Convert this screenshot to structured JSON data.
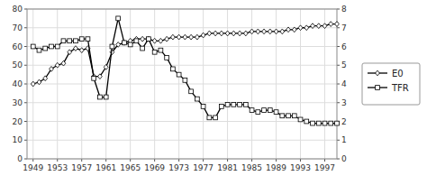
{
  "chart_data": {
    "type": "line",
    "x": [
      1949,
      1950,
      1951,
      1952,
      1953,
      1954,
      1955,
      1956,
      1957,
      1958,
      1959,
      1960,
      1961,
      1962,
      1963,
      1964,
      1965,
      1966,
      1967,
      1968,
      1969,
      1970,
      1971,
      1972,
      1973,
      1974,
      1975,
      1976,
      1977,
      1978,
      1979,
      1980,
      1981,
      1982,
      1983,
      1984,
      1985,
      1986,
      1987,
      1988,
      1989,
      1990,
      1991,
      1992,
      1993,
      1994,
      1995,
      1996,
      1997,
      1998,
      1999
    ],
    "series": [
      {
        "name": "E0",
        "color": "#000000",
        "marker": "diamond",
        "axis": "y",
        "values": [
          40,
          41,
          43,
          48,
          50,
          51,
          57,
          59,
          58,
          59,
          44,
          44,
          49,
          57,
          61,
          62,
          63,
          64,
          64,
          64,
          63,
          63,
          64,
          65,
          65,
          65,
          65,
          65,
          66,
          67,
          67,
          67,
          67,
          67,
          67,
          67,
          68,
          68,
          68,
          68,
          68,
          68,
          69,
          69,
          70,
          70,
          71,
          71,
          71,
          72,
          72
        ]
      },
      {
        "name": "TFR",
        "color": "#000000",
        "marker": "square",
        "axis": "y2",
        "values": [
          6.0,
          5.8,
          5.9,
          6.0,
          6.0,
          6.3,
          6.3,
          6.3,
          6.4,
          6.4,
          4.3,
          3.3,
          3.3,
          6.0,
          7.5,
          6.2,
          6.1,
          6.3,
          5.9,
          6.4,
          5.7,
          5.8,
          5.4,
          4.8,
          4.5,
          4.2,
          3.6,
          3.2,
          2.8,
          2.2,
          2.2,
          2.8,
          2.9,
          2.9,
          2.9,
          2.9,
          2.6,
          2.5,
          2.6,
          2.6,
          2.5,
          2.3,
          2.3,
          2.3,
          2.1,
          2.0,
          1.9,
          1.9,
          1.9,
          1.9,
          1.9
        ]
      }
    ],
    "xlim": [
      1948,
      1999
    ],
    "xticks": [
      1949,
      1953,
      1957,
      1961,
      1965,
      1969,
      1973,
      1977,
      1981,
      1985,
      1989,
      1993,
      1997
    ],
    "ylim": [
      0,
      80
    ],
    "yticks": [
      0,
      10,
      20,
      30,
      40,
      50,
      60,
      70,
      80
    ],
    "y2lim": [
      0,
      8
    ],
    "y2ticks": [
      0,
      1,
      2,
      3,
      4,
      5,
      6,
      7,
      8
    ],
    "grid": true,
    "legend": "right"
  }
}
